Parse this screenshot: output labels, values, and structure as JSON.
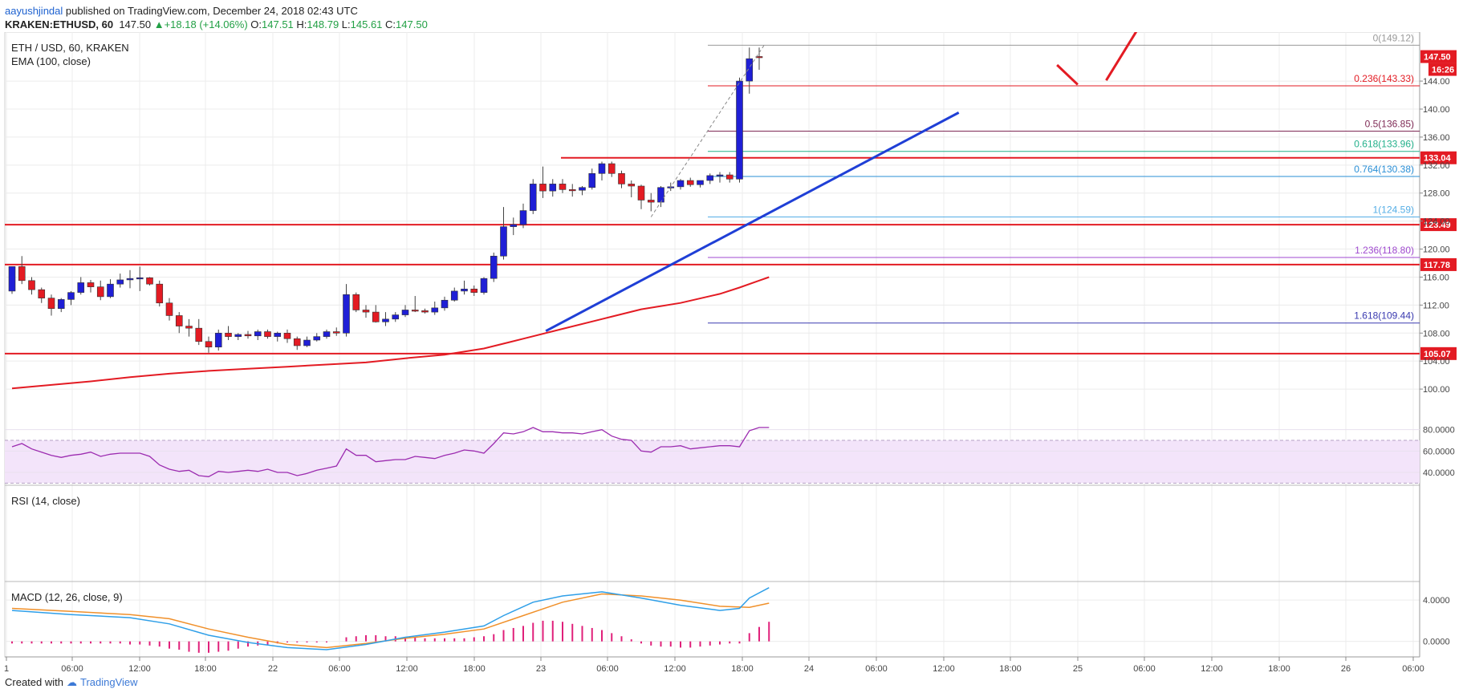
{
  "header": {
    "author": "aayushjindal",
    "published_text": "published on TradingView.com, December 24, 2018 02:43 UTC",
    "symbol": "KRAKEN:ETHUSD, 60",
    "last": "147.50",
    "change": "+18.18 (+14.06%)",
    "ohlc_o_label": "O:",
    "ohlc_o": "147.51",
    "ohlc_h_label": "H:",
    "ohlc_h": "148.79",
    "ohlc_l_label": "L:",
    "ohlc_l": "145.61",
    "ohlc_c_label": "C:",
    "ohlc_c": "147.50"
  },
  "footer": {
    "created_with": "Created with",
    "brand": "TradingView"
  },
  "colors": {
    "up": "#1f1fd6",
    "down": "#e31b23",
    "red_line": "#e31b23",
    "trend": "#1f3fd6",
    "rsi_line": "#9c2cb0",
    "macd": "#2f9fe8",
    "signal": "#f0902a",
    "hist": "#e0207a"
  },
  "chart_data": {
    "type": "candlestick",
    "legend_main": "ETH / USD, 60, KRAKEN",
    "legend_ema": "EMA (100, close)",
    "ylim": [
      96,
      151
    ],
    "y_ticks": [
      "144.00",
      "140.00",
      "136.00",
      "132.00",
      "128.00",
      "124.00",
      "120.00",
      "116.00",
      "112.00",
      "108.00",
      "104.00",
      "100.00"
    ],
    "x_ticks": [
      "1",
      "06:00",
      "12:00",
      "18:00",
      "22",
      "06:00",
      "12:00",
      "18:00",
      "23",
      "06:00",
      "12:00",
      "18:00",
      "24",
      "06:00",
      "12:00",
      "18:00",
      "25",
      "06:00",
      "12:00",
      "18:00",
      "26",
      "06:00"
    ],
    "price_labels": {
      "last": "147.50",
      "countdown": "16:26"
    },
    "horizontal_lines": [
      {
        "value": 133.04,
        "label": "133.04"
      },
      {
        "value": 123.49,
        "label": "123.49"
      },
      {
        "value": 117.78,
        "label": "117.78"
      },
      {
        "value": 105.07,
        "label": "105.07"
      }
    ],
    "fib_levels": [
      {
        "label": "0(149.12)",
        "value": 149.12,
        "color": "#999999"
      },
      {
        "label": "0.236(143.33)",
        "value": 143.33,
        "color": "#e31b23"
      },
      {
        "label": "0.5(136.85)",
        "value": 136.85,
        "color": "#7f2a55"
      },
      {
        "label": "0.618(133.96)",
        "value": 133.96,
        "color": "#22b08a"
      },
      {
        "label": "0.764(130.38)",
        "value": 130.38,
        "color": "#2a8fd6"
      },
      {
        "label": "1(124.59)",
        "value": 124.59,
        "color": "#55aee6"
      },
      {
        "label": "1.236(118.80)",
        "value": 118.8,
        "color": "#a04ad0"
      },
      {
        "label": "1.618(109.44)",
        "value": 109.44,
        "color": "#3a3ab0"
      }
    ],
    "candles": [
      [
        114,
        117.5,
        113.6,
        117.5
      ],
      [
        117.5,
        119,
        115,
        115.5
      ],
      [
        115.5,
        116,
        113.5,
        114.2
      ],
      [
        114.2,
        114.5,
        112.3,
        113
      ],
      [
        113,
        113.5,
        110.5,
        111.5
      ],
      [
        111.5,
        113,
        111,
        112.8
      ],
      [
        112.8,
        114,
        112,
        113.8
      ],
      [
        113.8,
        116,
        113.5,
        115.2
      ],
      [
        115.2,
        115.6,
        113.8,
        114.6
      ],
      [
        114.6,
        115.5,
        112.7,
        113.2
      ],
      [
        113.2,
        115.7,
        113,
        115
      ],
      [
        115,
        116.5,
        114.5,
        115.6
      ],
      [
        115.6,
        117,
        114.4,
        115.8
      ],
      [
        115.8,
        117.5,
        114,
        115.9
      ],
      [
        115.9,
        116,
        114.8,
        115
      ],
      [
        115,
        115.5,
        111.8,
        112.3
      ],
      [
        112.3,
        113,
        109.8,
        110.5
      ],
      [
        110.5,
        111,
        108,
        109
      ],
      [
        109,
        110,
        107.5,
        108.7
      ],
      [
        108.7,
        110,
        106.3,
        106.8
      ],
      [
        106.8,
        107.5,
        105.2,
        106
      ],
      [
        106,
        108.5,
        105.5,
        108
      ],
      [
        108,
        109,
        107,
        107.5
      ],
      [
        107.5,
        108,
        107,
        107.8
      ],
      [
        107.8,
        108.3,
        107.2,
        107.6
      ],
      [
        107.6,
        108.5,
        107,
        108.2
      ],
      [
        108.2,
        108.5,
        107.2,
        107.5
      ],
      [
        107.5,
        108.2,
        106.8,
        108
      ],
      [
        108,
        108.5,
        106.6,
        107.2
      ],
      [
        107.2,
        107.5,
        105.6,
        106.2
      ],
      [
        106.2,
        107.5,
        106,
        107
      ],
      [
        107,
        108,
        106.8,
        107.5
      ],
      [
        107.5,
        108.5,
        107.2,
        108.2
      ],
      [
        108.2,
        108.8,
        107.6,
        108
      ],
      [
        108,
        115,
        107.5,
        113.5
      ],
      [
        113.5,
        113.8,
        111,
        111.3
      ],
      [
        111.3,
        112,
        110.2,
        111
      ],
      [
        111,
        112,
        109.5,
        109.6
      ],
      [
        109.6,
        111,
        109,
        110
      ],
      [
        110,
        111,
        109.6,
        110.6
      ],
      [
        110.6,
        112,
        110.3,
        111.3
      ],
      [
        111.3,
        113.3,
        111,
        111.2
      ],
      [
        111.2,
        111.5,
        110.8,
        111
      ],
      [
        111,
        112.5,
        110.6,
        111.6
      ],
      [
        111.6,
        113.2,
        111.2,
        112.7
      ],
      [
        112.7,
        114.5,
        112.5,
        114
      ],
      [
        114,
        115.5,
        113.5,
        114.3
      ],
      [
        114.3,
        114.8,
        113.3,
        113.8
      ],
      [
        113.8,
        116,
        113.5,
        115.8
      ],
      [
        115.8,
        119.5,
        115.3,
        119
      ],
      [
        119,
        126,
        118.5,
        123.2
      ],
      [
        123.2,
        124.5,
        122,
        123.5
      ],
      [
        123.5,
        126.5,
        123,
        125.5
      ],
      [
        125.5,
        130,
        125,
        129.3
      ],
      [
        129.3,
        131.8,
        127.3,
        128.3
      ],
      [
        128.3,
        130,
        127.5,
        129.3
      ],
      [
        129.3,
        130,
        128,
        128.5
      ],
      [
        128.5,
        129.3,
        127.5,
        128.4
      ],
      [
        128.4,
        129,
        127.7,
        128.8
      ],
      [
        128.8,
        131.5,
        128.5,
        130.8
      ],
      [
        130.8,
        132.5,
        129.8,
        132.2
      ],
      [
        132.2,
        132.5,
        130.3,
        130.8
      ],
      [
        130.8,
        131.2,
        128.7,
        129.3
      ],
      [
        129.3,
        129.8,
        127.4,
        129
      ],
      [
        129,
        129.2,
        125.7,
        127
      ],
      [
        127,
        128,
        125.4,
        126.7
      ],
      [
        126.7,
        129,
        126,
        128.8
      ],
      [
        128.8,
        129.5,
        128.3,
        128.9
      ],
      [
        128.9,
        130,
        128.5,
        129.8
      ],
      [
        129.8,
        130.2,
        128.9,
        129.2
      ],
      [
        129.2,
        129.8,
        128.8,
        129.8
      ],
      [
        129.8,
        130.8,
        129.3,
        130.5
      ],
      [
        130.5,
        131,
        129.5,
        130.6
      ],
      [
        130.6,
        131,
        129.5,
        130
      ],
      [
        130,
        144.5,
        129.5,
        144
      ],
      [
        144,
        148.79,
        142.2,
        147.2
      ],
      [
        147.51,
        148.79,
        145.61,
        147.5
      ]
    ],
    "ema100": [
      [
        0,
        100.1
      ],
      [
        4,
        100.6
      ],
      [
        8,
        101.1
      ],
      [
        12,
        101.7
      ],
      [
        16,
        102.2
      ],
      [
        20,
        102.6
      ],
      [
        24,
        102.9
      ],
      [
        28,
        103.2
      ],
      [
        32,
        103.5
      ],
      [
        36,
        103.8
      ],
      [
        40,
        104.4
      ],
      [
        44,
        104.9
      ],
      [
        48,
        105.8
      ],
      [
        52,
        107.2
      ],
      [
        56,
        108.6
      ],
      [
        60,
        110
      ],
      [
        64,
        111.4
      ],
      [
        68,
        112.3
      ],
      [
        72,
        113.6
      ],
      [
        74,
        114.5
      ],
      [
        76,
        115.5
      ],
      [
        77,
        116
      ]
    ],
    "rsi": {
      "label": "RSI (14, close)",
      "ylim": [
        28,
        88
      ],
      "ticks": [
        "80.0000",
        "60.0000",
        "40.0000"
      ],
      "band": [
        30,
        70
      ],
      "values": [
        64,
        67,
        62,
        59,
        56,
        54,
        56,
        57,
        59,
        55,
        57,
        58,
        58,
        58,
        55,
        47,
        43,
        41,
        42,
        37,
        36,
        41,
        40,
        41,
        42,
        41,
        43,
        40,
        40,
        37,
        39,
        42,
        44,
        46,
        62,
        56,
        56,
        50,
        51,
        52,
        52,
        55,
        54,
        53,
        56,
        58,
        61,
        60,
        58,
        67,
        77,
        76,
        78,
        82,
        78,
        78,
        77,
        77,
        76,
        78,
        80,
        74,
        71,
        70,
        60,
        59,
        64,
        64,
        65,
        62,
        63,
        64,
        65,
        65,
        64,
        79,
        82,
        82
      ]
    },
    "macd": {
      "label": "MACD (12, 26, close, 9)",
      "ylim": [
        -1.5,
        5.8
      ],
      "ticks": [
        "4.0000",
        "0.0000"
      ],
      "macd": [
        [
          0,
          3.0
        ],
        [
          6,
          2.6
        ],
        [
          12,
          2.3
        ],
        [
          16,
          1.7
        ],
        [
          20,
          0.6
        ],
        [
          24,
          -0.1
        ],
        [
          28,
          -0.6
        ],
        [
          32,
          -0.8
        ],
        [
          36,
          -0.3
        ],
        [
          40,
          0.4
        ],
        [
          44,
          0.9
        ],
        [
          48,
          1.5
        ],
        [
          50,
          2.5
        ],
        [
          53,
          3.8
        ],
        [
          56,
          4.4
        ],
        [
          60,
          4.8
        ],
        [
          64,
          4.2
        ],
        [
          68,
          3.5
        ],
        [
          72,
          3.0
        ],
        [
          74,
          3.2
        ],
        [
          75,
          4.2
        ],
        [
          77,
          5.2
        ]
      ],
      "signal": [
        [
          0,
          3.2
        ],
        [
          6,
          2.9
        ],
        [
          12,
          2.6
        ],
        [
          16,
          2.2
        ],
        [
          20,
          1.2
        ],
        [
          24,
          0.4
        ],
        [
          28,
          -0.3
        ],
        [
          32,
          -0.6
        ],
        [
          36,
          -0.2
        ],
        [
          40,
          0.3
        ],
        [
          44,
          0.7
        ],
        [
          48,
          1.2
        ],
        [
          52,
          2.5
        ],
        [
          56,
          3.8
        ],
        [
          60,
          4.6
        ],
        [
          64,
          4.4
        ],
        [
          68,
          4.0
        ],
        [
          72,
          3.4
        ],
        [
          75,
          3.3
        ],
        [
          77,
          3.7
        ]
      ],
      "hist_start": 0,
      "hist": [
        -0.2,
        -0.2,
        -0.2,
        -0.2,
        -0.2,
        -0.2,
        -0.2,
        -0.2,
        -0.2,
        -0.2,
        -0.2,
        -0.2,
        -0.3,
        -0.3,
        -0.4,
        -0.5,
        -0.7,
        -0.8,
        -1.0,
        -1.1,
        -1.1,
        -1.0,
        -0.9,
        -0.7,
        -0.5,
        -0.4,
        -0.3,
        -0.2,
        -0.1,
        -0.1,
        -0.1,
        -0.1,
        -0.1,
        0.0,
        0.4,
        0.5,
        0.6,
        0.6,
        0.5,
        0.5,
        0.4,
        0.4,
        0.3,
        0.3,
        0.3,
        0.3,
        0.3,
        0.4,
        0.5,
        0.7,
        1.1,
        1.3,
        1.5,
        1.8,
        2.0,
        2.0,
        1.9,
        1.7,
        1.5,
        1.3,
        1.1,
        0.8,
        0.5,
        0.2,
        -0.2,
        -0.4,
        -0.5,
        -0.5,
        -0.6,
        -0.6,
        -0.5,
        -0.4,
        -0.3,
        -0.2,
        -0.2,
        0.8,
        1.4,
        1.9
      ]
    },
    "trendline": [
      [
        54.3,
        108.3
      ],
      [
        96.3,
        139.5
      ]
    ],
    "projection": [
      [
        106.3,
        146.3
      ],
      [
        108.4,
        143.5
      ],
      [
        111.3,
        144.1
      ],
      [
        114.5,
        151.4
      ]
    ]
  }
}
